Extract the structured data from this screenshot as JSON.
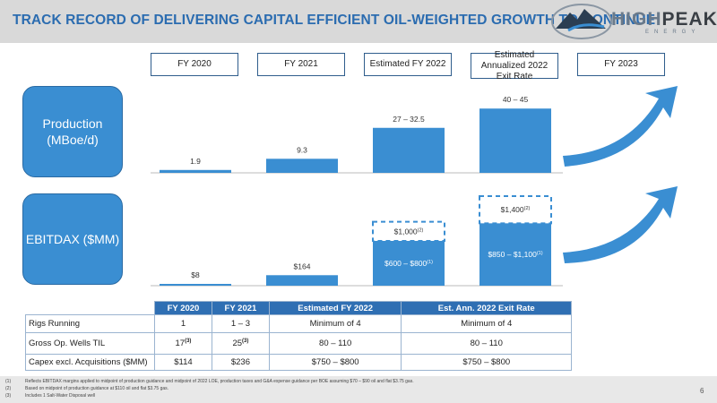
{
  "header": {
    "title": "TRACK RECORD OF DELIVERING CAPITAL EFFICIENT OIL-WEIGHTED GROWTH TO CONTINUE",
    "logo_main": "HIGH",
    "logo_accent": "PEAK",
    "logo_sub": "ENERGY"
  },
  "columns": [
    "FY 2020",
    "FY 2021",
    "Estimated FY 2022",
    "Estimated Annualized 2022 Exit Rate",
    "FY 2023"
  ],
  "row_labels": {
    "production": "Production (MBoe/d)",
    "ebitdax": "EBITDAX ($MM)"
  },
  "chart_data": [
    {
      "type": "bar",
      "categories": [
        "FY 2020",
        "FY 2021",
        "Estimated FY 2022",
        "Estimated Annualized 2022 Exit Rate"
      ],
      "values": [
        1.9,
        9.3,
        29.75,
        42.5
      ],
      "data_labels": [
        "1.9",
        "9.3",
        "27 – 32.5",
        "40 – 45"
      ],
      "ylabel": "Production (MBoe/d)",
      "color": "#3a8ed2"
    },
    {
      "type": "bar",
      "categories": [
        "FY 2020",
        "FY 2021",
        "Estimated FY 2022",
        "Estimated Annualized 2022 Exit Rate"
      ],
      "values": [
        8,
        164,
        700,
        975
      ],
      "upside_values": [
        null,
        null,
        1000,
        1400
      ],
      "data_labels": [
        "$8",
        "$164",
        "$600 – $800",
        "$850 – $1,100"
      ],
      "data_label_notes": [
        "",
        "",
        "(1)",
        "(1)"
      ],
      "upside_labels": [
        "",
        "",
        "$1,000",
        "$1,400"
      ],
      "upside_label_notes": [
        "",
        "",
        "(2)",
        "(2)"
      ],
      "ylabel": "EBITDAX ($MM)",
      "color": "#3a8ed2"
    }
  ],
  "table": {
    "headers": [
      "",
      "FY 2020",
      "FY 2021",
      "Estimated FY 2022",
      "Est. Ann. 2022 Exit Rate"
    ],
    "rows": [
      {
        "label": "Rigs Running",
        "c1": "1",
        "c1n": "",
        "c2": "1 – 3",
        "c2n": "",
        "c3": "Minimum of 4",
        "c4": "Minimum of 4"
      },
      {
        "label": "Gross Op. Wells TIL",
        "c1": "17",
        "c1n": "(3)",
        "c2": "25",
        "c2n": "(3)",
        "c3": "80 – 110",
        "c4": "80 – 110"
      },
      {
        "label": "Capex excl. Acquisitions ($MM)",
        "c1": "$114",
        "c1n": "",
        "c2": "$236",
        "c2n": "",
        "c3": "$750 – $800",
        "c4": "$750 – $800"
      }
    ]
  },
  "footnotes": [
    {
      "num": "(1)",
      "text": "Reflects EBITDAX margins applied to midpoint of production guidance and midpoint of 2022 LOE, production taxes and G&A expense guidance per BOE assuming $70 – $90 oil and flat $3.75 gas."
    },
    {
      "num": "(2)",
      "text": "Based on midpoint of production guidance at $110 oil and flat $3.75 gas."
    },
    {
      "num": "(3)",
      "text": "Includes 1 Salt-Water Disposal well"
    }
  ],
  "page_number": "6",
  "colors": {
    "accent": "#3a8ed2",
    "header_bg": "#d9d9d9",
    "title": "#2b6cb0",
    "table_header": "#2f6fb3"
  }
}
